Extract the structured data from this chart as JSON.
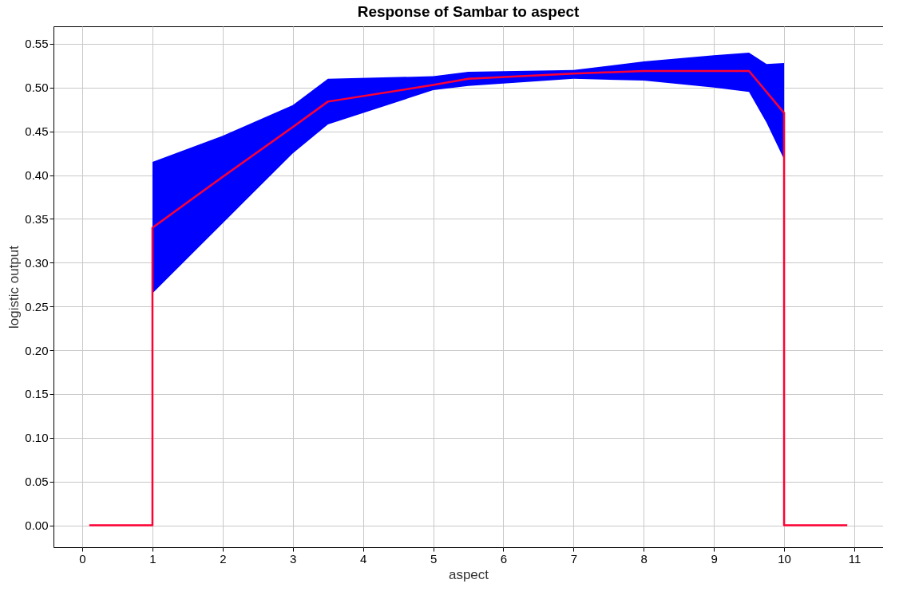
{
  "chart_data": {
    "type": "line",
    "title": "Response of Sambar to aspect",
    "xlabel": "aspect",
    "ylabel": "logistic output",
    "series": [
      {
        "color": "#ff0033",
        "x": [
          0.1,
          1,
          1,
          2,
          3,
          3.5,
          5,
          5.5,
          7,
          8,
          9,
          9.5,
          9.75,
          10,
          10,
          10.9
        ],
        "values": [
          0,
          0,
          0.34,
          0.398,
          0.455,
          0.484,
          0.503,
          0.51,
          0.516,
          0.519,
          0.519,
          0.519,
          0.495,
          0.471,
          0,
          0
        ],
        "lower": [
          null,
          null,
          0.265,
          0.345,
          0.425,
          0.458,
          0.497,
          0.502,
          0.51,
          0.508,
          0.5,
          0.495,
          0.46,
          0.418,
          null,
          null
        ],
        "upper": [
          null,
          null,
          0.415,
          0.445,
          0.48,
          0.51,
          0.513,
          0.518,
          0.52,
          0.53,
          0.537,
          0.54,
          0.527,
          0.528,
          null,
          null
        ]
      }
    ],
    "xlim": [
      -0.41,
      11.41
    ],
    "ylim": [
      -0.025,
      0.57
    ],
    "xticks": [
      0,
      1,
      2,
      3,
      4,
      5,
      6,
      7,
      8,
      9,
      10,
      11
    ],
    "yticks": [
      {
        "value": 0,
        "label": "0.00"
      },
      {
        "value": 0.05,
        "label": "0.05"
      },
      {
        "value": 0.1,
        "label": "0.10"
      },
      {
        "value": 0.15,
        "label": "0.15"
      },
      {
        "value": 0.2,
        "label": "0.20"
      },
      {
        "value": 0.25,
        "label": "0.25"
      },
      {
        "value": 0.3,
        "label": "0.30"
      },
      {
        "value": 0.35,
        "label": "0.35"
      },
      {
        "value": 0.4,
        "label": "0.40"
      },
      {
        "value": 0.45,
        "label": "0.45"
      },
      {
        "value": 0.5,
        "label": "0.50"
      },
      {
        "value": 0.55,
        "label": "0.55"
      }
    ],
    "grid": true,
    "marker": "none",
    "line_style": "solid"
  }
}
